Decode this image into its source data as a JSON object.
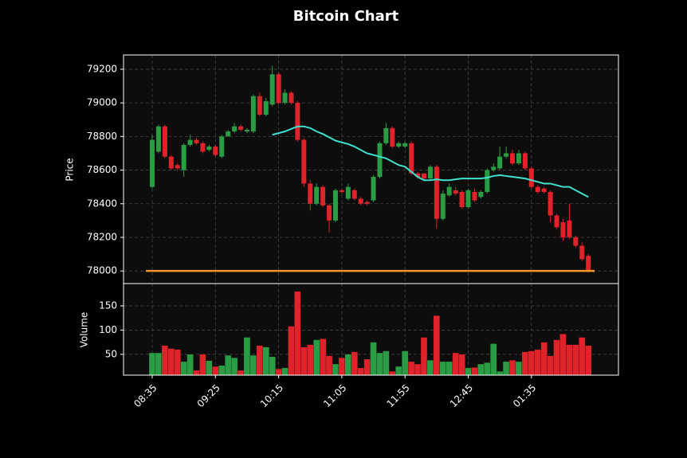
{
  "chart_data": {
    "type": "candlestick",
    "title": "Bitcoin Chart",
    "ylabel": "Price",
    "categories": [
      "08:35",
      null,
      null,
      null,
      null,
      null,
      null,
      null,
      null,
      null,
      "09:25",
      null,
      null,
      null,
      null,
      null,
      null,
      null,
      null,
      null,
      "10:15",
      null,
      null,
      null,
      null,
      null,
      null,
      null,
      null,
      null,
      "11:05",
      null,
      null,
      null,
      null,
      null,
      null,
      null,
      null,
      null,
      "11:55",
      null,
      null,
      null,
      null,
      null,
      null,
      null,
      null,
      null,
      "12:45",
      null,
      null,
      null,
      null,
      null,
      null,
      null,
      null,
      null,
      "01:35",
      null,
      null,
      null,
      null,
      null,
      null,
      null,
      null,
      null
    ],
    "open": [
      78500,
      78710,
      78860,
      78680,
      78630,
      78600,
      78750,
      78780,
      78760,
      78720,
      78740,
      78680,
      78800,
      78830,
      78860,
      78830,
      78830,
      79040,
      78930,
      78990,
      79170,
      79000,
      79060,
      79000,
      78780,
      78520,
      78400,
      78500,
      78390,
      78300,
      78480,
      78430,
      78480,
      78430,
      78410,
      78420,
      78560,
      78760,
      78850,
      78740,
      78740,
      78760,
      78580,
      78580,
      78550,
      78620,
      78310,
      78450,
      78480,
      78470,
      78380,
      78470,
      78440,
      78470,
      78600,
      78610,
      78680,
      78700,
      78640,
      78700,
      78610,
      78500,
      78490,
      78470,
      78330,
      78290,
      78300,
      78200,
      78150,
      78090
    ],
    "high": [
      78810,
      78870,
      78870,
      78690,
      78640,
      78760,
      78810,
      78790,
      78770,
      78750,
      78750,
      78810,
      78840,
      78880,
      78870,
      78850,
      79050,
      79060,
      79030,
      79220,
      79180,
      79080,
      79070,
      79010,
      78790,
      78540,
      78520,
      78510,
      78400,
      78490,
      78490,
      78520,
      78490,
      78440,
      78420,
      78570,
      78770,
      78880,
      78860,
      78770,
      78770,
      78770,
      78590,
      78580,
      78630,
      78630,
      78480,
      78520,
      78500,
      78480,
      78490,
      78490,
      78480,
      78610,
      78640,
      78740,
      78740,
      78720,
      78720,
      78710,
      78620,
      78510,
      78500,
      78480,
      78340,
      78310,
      78400,
      78210,
      78170,
      78100
    ],
    "low": [
      78490,
      78700,
      78670,
      78600,
      78600,
      78560,
      78740,
      78750,
      78700,
      78710,
      78680,
      78670,
      78800,
      78820,
      78830,
      78820,
      78820,
      78920,
      78920,
      78980,
      78990,
      78990,
      78990,
      78770,
      78500,
      78360,
      78390,
      78380,
      78230,
      78290,
      78460,
      78420,
      78420,
      78390,
      78390,
      78410,
      78550,
      78750,
      78730,
      78730,
      78730,
      78570,
      78550,
      78540,
      78540,
      78250,
      78300,
      78440,
      78450,
      78370,
      78370,
      78410,
      78430,
      78460,
      78590,
      78600,
      78670,
      78630,
      78630,
      78600,
      78490,
      78460,
      78460,
      78290,
      78250,
      78180,
      78190,
      78140,
      78060,
      77990
    ],
    "close": [
      78780,
      78860,
      78680,
      78610,
      78610,
      78750,
      78780,
      78760,
      78710,
      78740,
      78690,
      78800,
      78830,
      78860,
      78840,
      78840,
      79040,
      78930,
      79010,
      79170,
      79000,
      79060,
      79000,
      78780,
      78520,
      78400,
      78500,
      78390,
      78300,
      78480,
      78470,
      78500,
      78430,
      78400,
      78400,
      78560,
      78760,
      78850,
      78740,
      78760,
      78760,
      78580,
      78560,
      78550,
      78620,
      78310,
      78460,
      78500,
      78460,
      78380,
      78480,
      78420,
      78470,
      78600,
      78620,
      78680,
      78700,
      78640,
      78700,
      78610,
      78500,
      78470,
      78470,
      78330,
      78260,
      78200,
      78200,
      78150,
      78070,
      78000
    ],
    "up_color": "#2a9d44",
    "down_color": "#e0232b",
    "ylim": [
      77925,
      79285
    ],
    "yticks": [
      78000,
      78200,
      78400,
      78600,
      78800,
      79000,
      79200
    ],
    "grid": true,
    "moving_average": {
      "color": "#40e0d0",
      "values": [
        null,
        null,
        null,
        null,
        null,
        null,
        null,
        null,
        null,
        null,
        null,
        null,
        null,
        null,
        null,
        null,
        null,
        null,
        null,
        78810,
        78820,
        78830,
        78845,
        78860,
        78860,
        78850,
        78830,
        78815,
        78795,
        78775,
        78765,
        78755,
        78740,
        78720,
        78700,
        78690,
        78680,
        78670,
        78650,
        78630,
        78620,
        78590,
        78560,
        78540,
        78540,
        78545,
        78540,
        78540,
        78545,
        78550,
        78550,
        78550,
        78550,
        78555,
        78565,
        78570,
        78565,
        78560,
        78555,
        78550,
        78540,
        78530,
        78520,
        78520,
        78510,
        78500,
        78500,
        78480,
        78460,
        78440
      ]
    },
    "hline": {
      "value": 78000,
      "color": "#f5962a"
    },
    "volume": {
      "ylabel": "Volume",
      "ylim": [
        7,
        196
      ],
      "yticks": [
        50,
        100,
        150
      ],
      "values": [
        53,
        53,
        68,
        62,
        60,
        35,
        50,
        17,
        50,
        37,
        25,
        27,
        48,
        43,
        17,
        85,
        48,
        68,
        65,
        45,
        20,
        22,
        108,
        180,
        65,
        70,
        80,
        82,
        47,
        30,
        43,
        50,
        55,
        22,
        40,
        75,
        53,
        57,
        15,
        25,
        57,
        35,
        30,
        85,
        38,
        130,
        35,
        35,
        53,
        50,
        22,
        23,
        30,
        33,
        72,
        15,
        35,
        38,
        35,
        55,
        57,
        60,
        75,
        47,
        80,
        92,
        70,
        70,
        85,
        68
      ]
    }
  }
}
